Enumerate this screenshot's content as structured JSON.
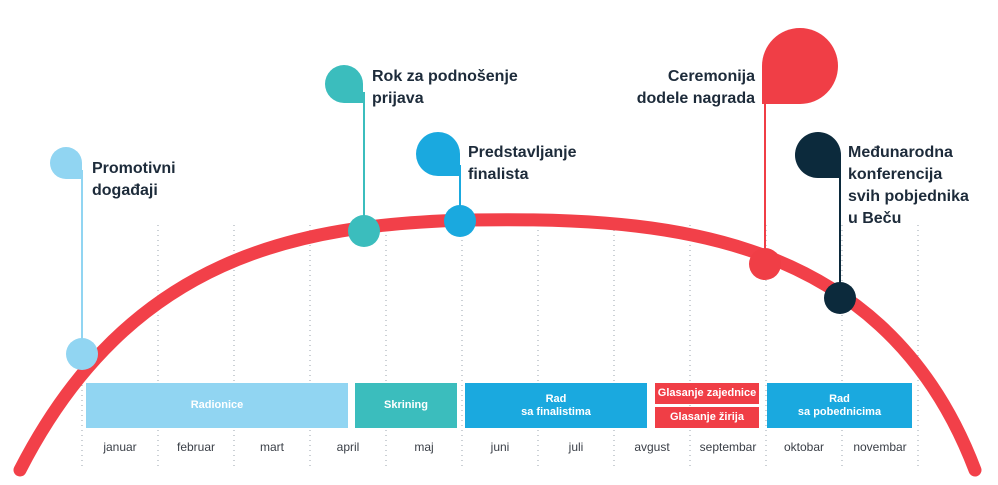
{
  "colors": {
    "arc": "#f24049",
    "light_blue": "#91d5f2",
    "teal": "#3bbdbd",
    "blue": "#1aa9df",
    "red": "#f03e46",
    "navy": "#0c2a3c"
  },
  "months": [
    "januar",
    "februar",
    "mart",
    "april",
    "maj",
    "juni",
    "juli",
    "avgust",
    "septembar",
    "oktobar",
    "novembar"
  ],
  "phases": [
    {
      "lines": [
        "Radionice"
      ],
      "color": "light_blue"
    },
    {
      "lines": [
        "Skrining"
      ],
      "color": "teal"
    },
    {
      "lines": [
        "Rad",
        "sa finalistima"
      ],
      "color": "blue"
    },
    {
      "lines": [
        "Glasanje zajednice"
      ],
      "color": "red"
    },
    {
      "lines": [
        "Glasanje žirija"
      ],
      "color": "red"
    },
    {
      "lines": [
        "Rad",
        "sa pobednicima"
      ],
      "color": "blue"
    }
  ],
  "milestones": [
    {
      "lines": [
        "Promotivni",
        "događaji"
      ],
      "color": "light_blue"
    },
    {
      "lines": [
        "Rok za podnošenje",
        "prijava"
      ],
      "color": "teal"
    },
    {
      "lines": [
        "Predstavljanje",
        "finalista"
      ],
      "color": "blue"
    },
    {
      "lines": [
        "Ceremonija",
        "dodele nagrada"
      ],
      "color": "red"
    },
    {
      "lines": [
        "Međunarodna",
        "konferencija",
        "svih pobjednika",
        "u Beču"
      ],
      "color": "navy"
    }
  ]
}
